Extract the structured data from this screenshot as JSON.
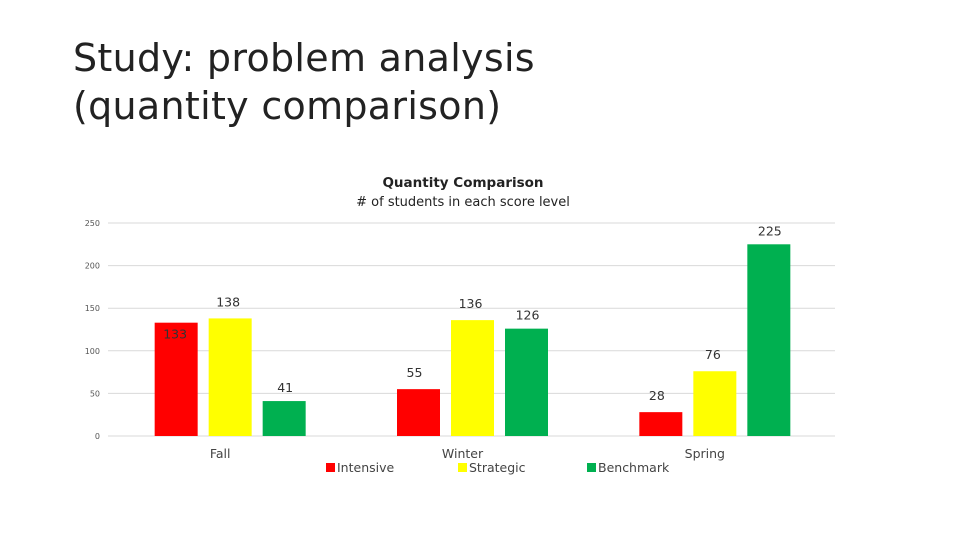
{
  "slide": {
    "title_line1": "Study: problem analysis",
    "title_line2": "(quantity comparison)"
  },
  "chart_data": {
    "type": "bar",
    "title": "Quantity Comparison",
    "subtitle": "# of students in each score level",
    "categories": [
      "Fall",
      "Winter",
      "Spring"
    ],
    "series": [
      {
        "name": "Intensive",
        "color": "#ff0000",
        "values": [
          133,
          55,
          28
        ]
      },
      {
        "name": "Strategic",
        "color": "#ffff00",
        "values": [
          138,
          136,
          76
        ]
      },
      {
        "name": "Benchmark",
        "color": "#00b050",
        "values": [
          41,
          126,
          225
        ]
      }
    ],
    "ylim": [
      0,
      250
    ],
    "yticks": [
      0,
      50,
      100,
      150,
      200,
      250
    ],
    "grid": true,
    "legend": "bottom"
  }
}
